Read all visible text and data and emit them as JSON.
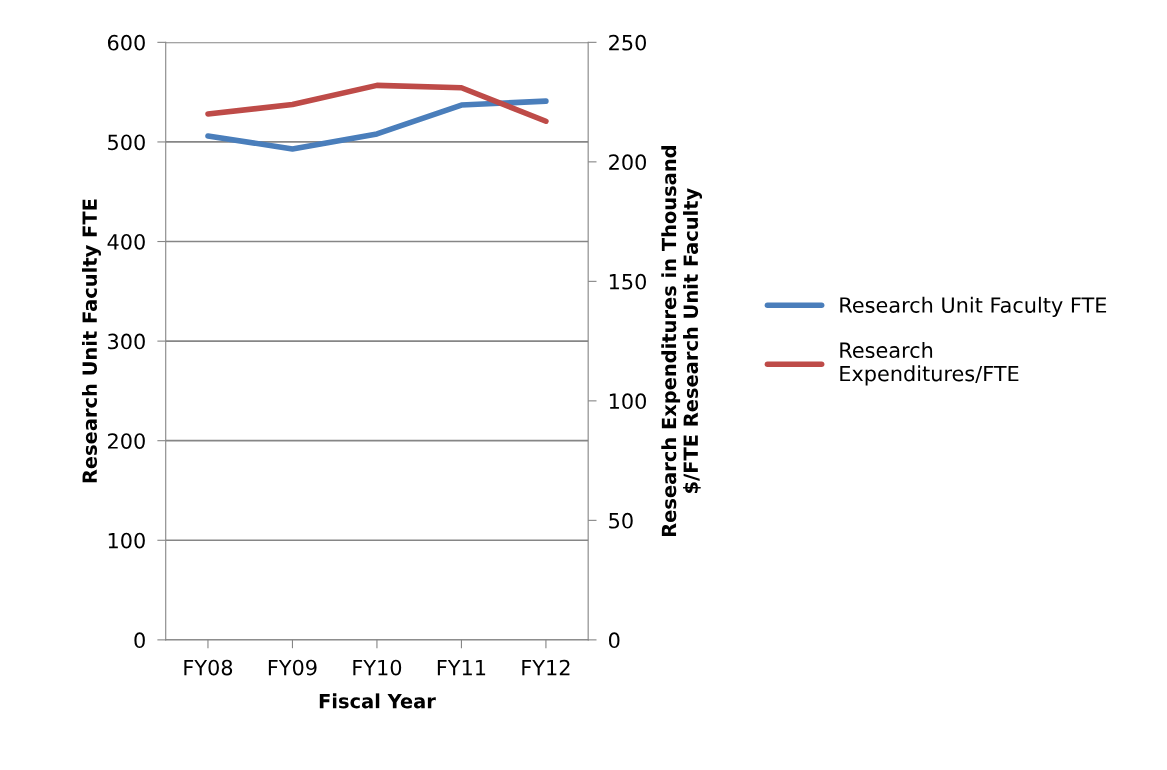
{
  "chart_data": {
    "type": "line",
    "xlabel": "Fiscal Year",
    "ylabel": "Research Unit Faculty FTE",
    "y2label": "Research Expenditures in Thousand\n$/FTE Research Unit Faculty",
    "categories": [
      "FY08",
      "FY09",
      "FY10",
      "FY11",
      "FY12"
    ],
    "series": [
      {
        "name": "Research Unit Faculty FTE",
        "color": "#4a7ebb",
        "values": [
          506,
          493,
          508,
          537,
          541
        ]
      },
      {
        "name": "Research\nExpenditures/FTE",
        "color": "#be4b48",
        "values": [
          220,
          224,
          232,
          231,
          217
        ],
        "axis": "y2"
      }
    ],
    "ylim": [
      0,
      600
    ],
    "yticks": [
      0,
      100,
      200,
      300,
      400,
      500,
      600
    ],
    "y2lim": [
      0,
      250
    ],
    "y2ticks": [
      0,
      50,
      100,
      150,
      200,
      250
    ],
    "grid": "y",
    "legend": "right",
    "marker": "none",
    "line_style": "solid"
  }
}
